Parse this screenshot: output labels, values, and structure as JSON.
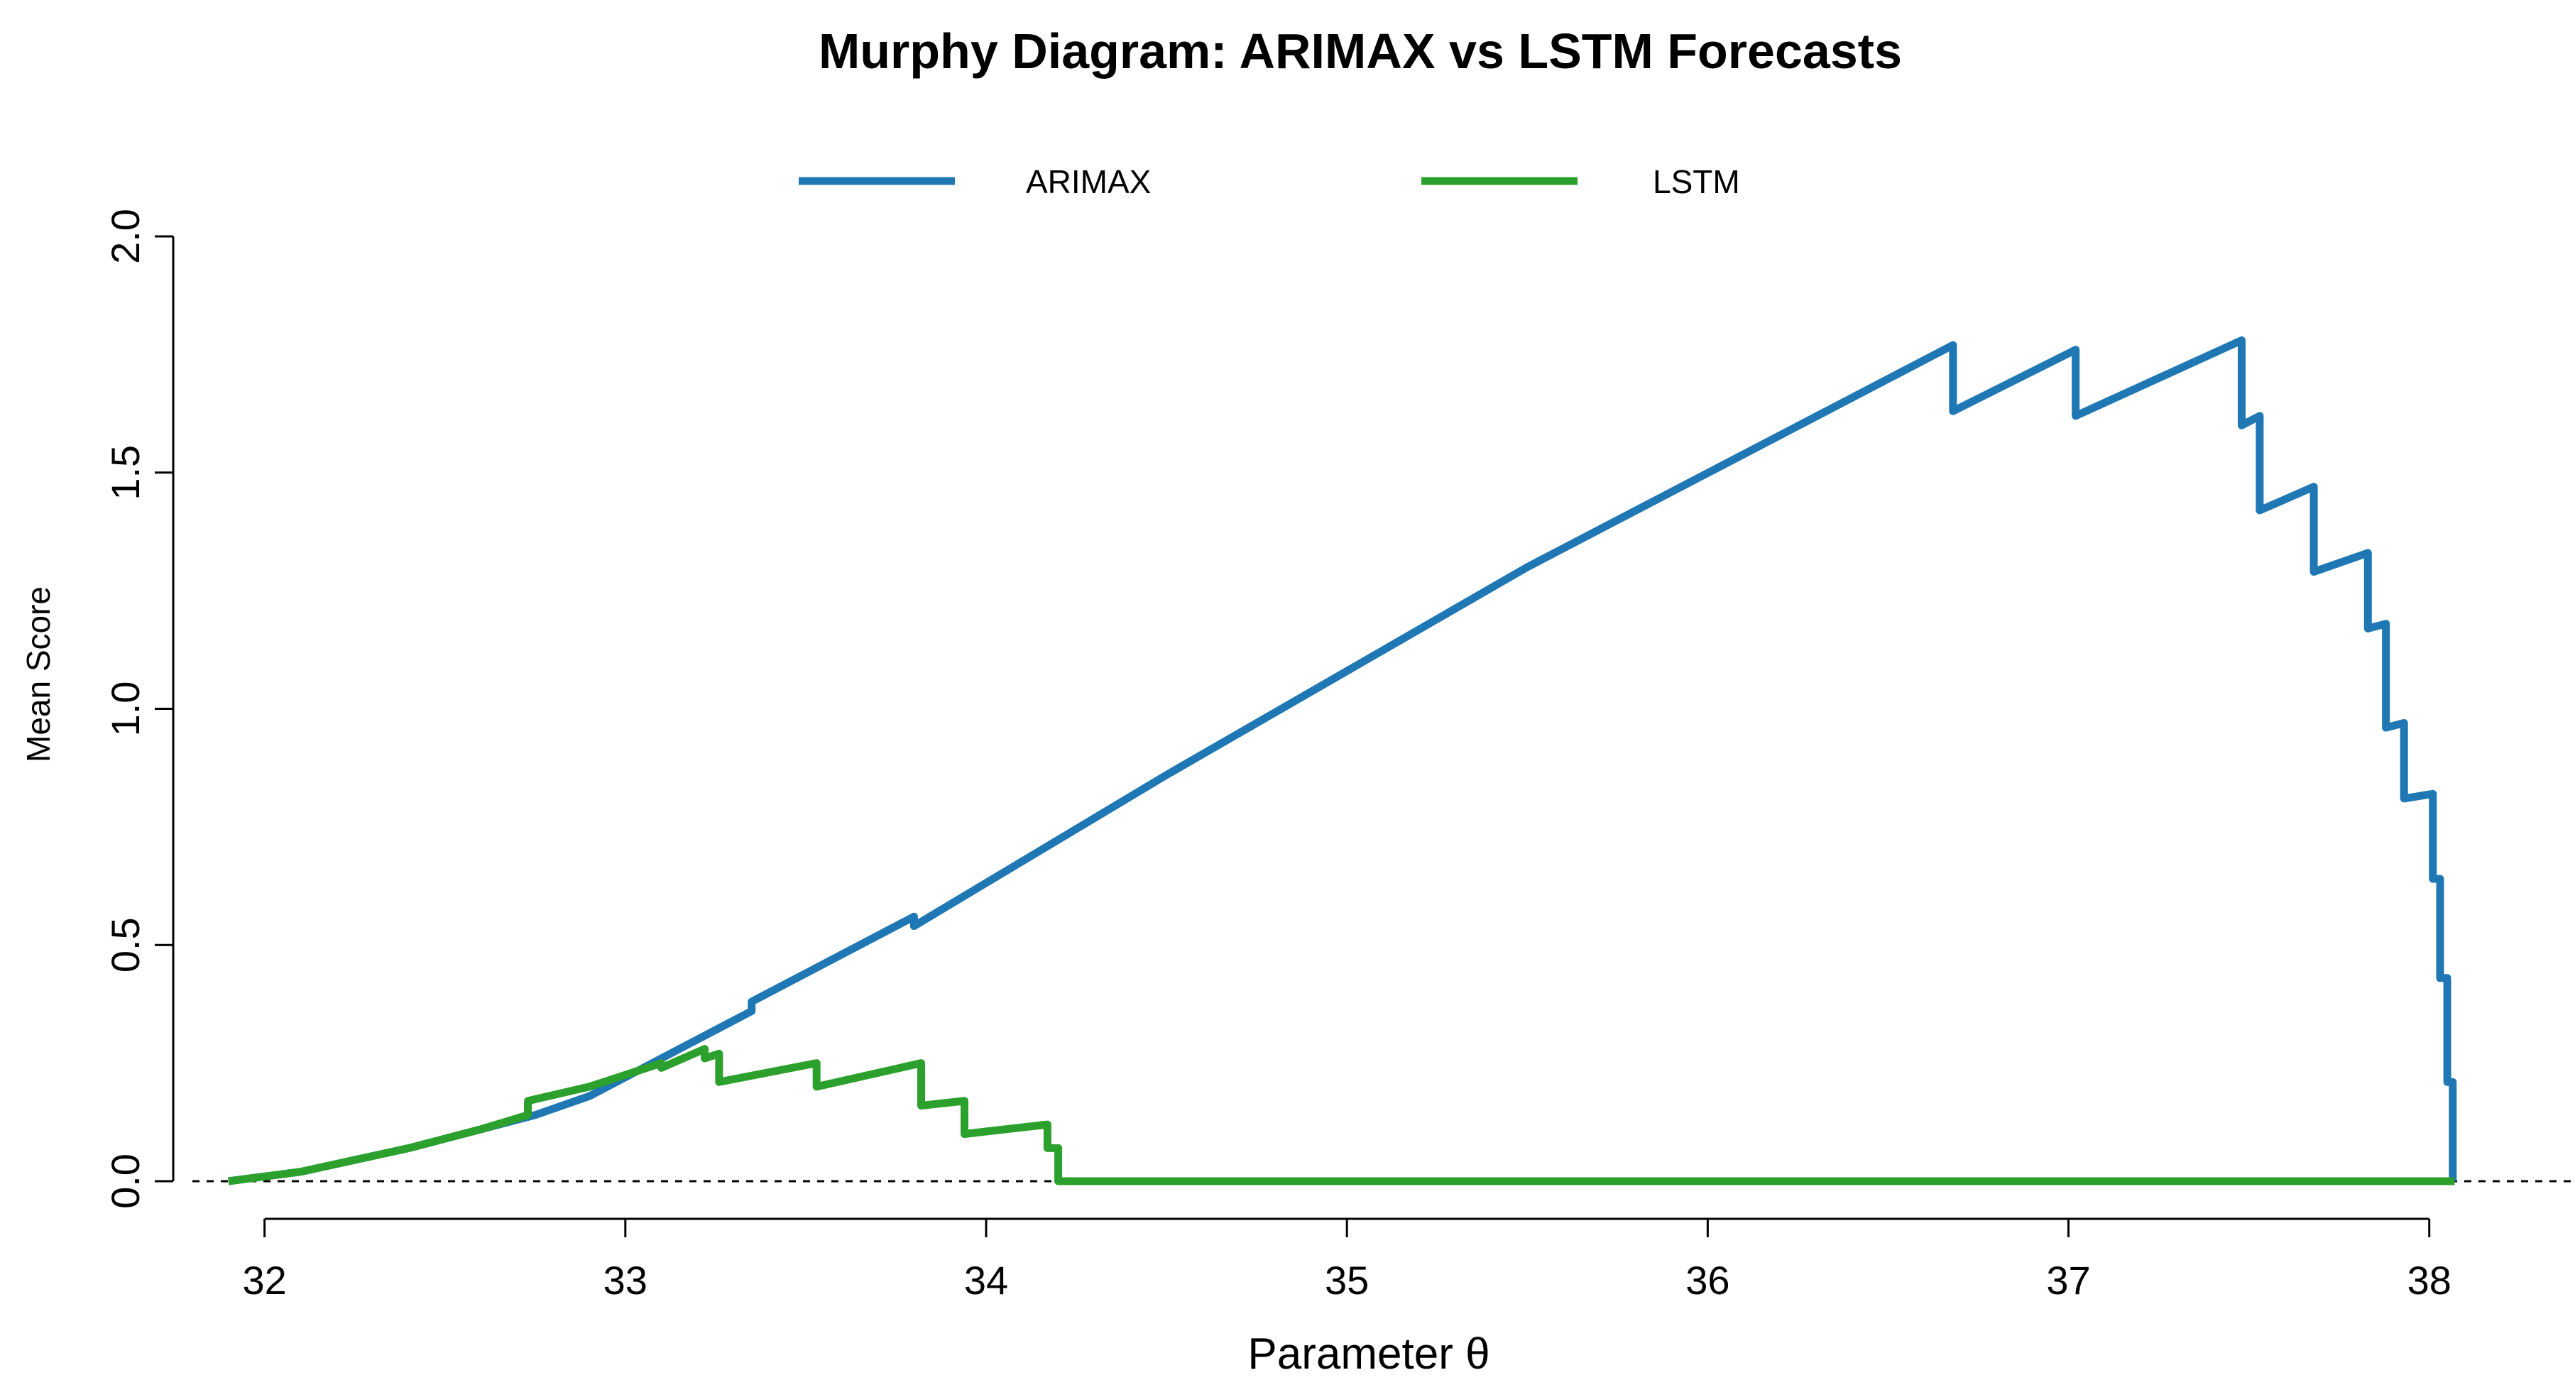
{
  "chart_data": {
    "type": "line",
    "title": "Murphy Diagram: ARIMAX vs LSTM Forecasts",
    "xlabel": "Parameter θ",
    "ylabel": "Mean Score",
    "xlim": [
      31.8,
      38.4
    ],
    "ylim": [
      0,
      2.0
    ],
    "x_ticks": [
      32,
      33,
      34,
      35,
      36,
      37,
      38
    ],
    "x_tick_labels": [
      "32",
      "33",
      "34",
      "35",
      "36",
      "37",
      "38"
    ],
    "y_ticks": [
      0,
      0.5,
      1.0,
      1.5,
      2.0
    ],
    "y_tick_labels": [
      "0.0",
      "0.5",
      "1.0",
      "1.5",
      "2.0"
    ],
    "reference_line": 0,
    "legend_position": "top-center",
    "colors": {
      "ARIMAX": "#1f77b4",
      "LSTM": "#2ca02c"
    },
    "series": [
      {
        "name": "ARIMAX",
        "color": "#1f77b4",
        "x": [
          31.9,
          32.1,
          32.4,
          32.6,
          32.75,
          32.9,
          33.2,
          33.35,
          33.35,
          33.8,
          33.8,
          34.5,
          35.5,
          36.68,
          36.68,
          37.02,
          37.02,
          37.48,
          37.48,
          37.53,
          37.53,
          37.68,
          37.68,
          37.83,
          37.83,
          37.88,
          37.88,
          37.93,
          37.93,
          38.01,
          38.01,
          38.03,
          38.03,
          38.05,
          38.05,
          38.065,
          38.065,
          38.07
        ],
        "y": [
          0,
          0.02,
          0.07,
          0.11,
          0.14,
          0.18,
          0.3,
          0.36,
          0.38,
          0.56,
          0.54,
          0.86,
          1.3,
          1.77,
          1.63,
          1.76,
          1.62,
          1.78,
          1.6,
          1.62,
          1.42,
          1.47,
          1.29,
          1.33,
          1.17,
          1.18,
          0.96,
          0.97,
          0.81,
          0.82,
          0.64,
          0.64,
          0.43,
          0.43,
          0.21,
          0.21,
          0,
          0
        ]
      },
      {
        "name": "LSTM",
        "color": "#2ca02c",
        "x": [
          31.9,
          32.1,
          32.4,
          32.6,
          32.73,
          32.73,
          32.9,
          33.1,
          33.1,
          33.22,
          33.22,
          33.26,
          33.26,
          33.53,
          33.53,
          33.82,
          33.82,
          33.94,
          33.94,
          34.17,
          34.17,
          34.2,
          34.2,
          38.07
        ],
        "y": [
          0,
          0.02,
          0.07,
          0.11,
          0.14,
          0.17,
          0.2,
          0.25,
          0.24,
          0.28,
          0.26,
          0.27,
          0.21,
          0.25,
          0.2,
          0.25,
          0.16,
          0.17,
          0.1,
          0.12,
          0.07,
          0.07,
          0,
          0
        ]
      }
    ]
  }
}
